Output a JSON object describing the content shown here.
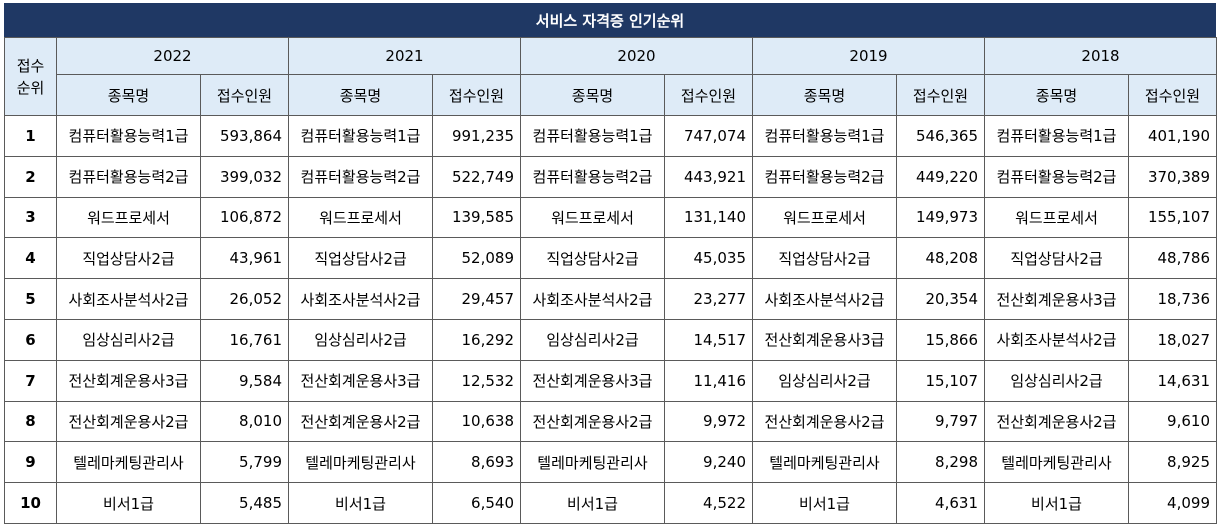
{
  "title": "서비스 자격증 인기순위",
  "rank_header_line1": "접수",
  "rank_header_line2": "순위",
  "col_name": "종목명",
  "col_count": "접수인원",
  "years": [
    "2022",
    "2021",
    "2020",
    "2019",
    "2018"
  ],
  "rows": [
    {
      "rank": "1",
      "cells": [
        [
          "컴퓨터활용능력1급",
          "593,864"
        ],
        [
          "컴퓨터활용능력1급",
          "991,235"
        ],
        [
          "컴퓨터활용능력1급",
          "747,074"
        ],
        [
          "컴퓨터활용능력1급",
          "546,365"
        ],
        [
          "컴퓨터활용능력1급",
          "401,190"
        ]
      ]
    },
    {
      "rank": "2",
      "cells": [
        [
          "컴퓨터활용능력2급",
          "399,032"
        ],
        [
          "컴퓨터활용능력2급",
          "522,749"
        ],
        [
          "컴퓨터활용능력2급",
          "443,921"
        ],
        [
          "컴퓨터활용능력2급",
          "449,220"
        ],
        [
          "컴퓨터활용능력2급",
          "370,389"
        ]
      ]
    },
    {
      "rank": "3",
      "cells": [
        [
          "워드프로세서",
          "106,872"
        ],
        [
          "워드프로세서",
          "139,585"
        ],
        [
          "워드프로세서",
          "131,140"
        ],
        [
          "워드프로세서",
          "149,973"
        ],
        [
          "워드프로세서",
          "155,107"
        ]
      ]
    },
    {
      "rank": "4",
      "cells": [
        [
          "직업상담사2급",
          "43,961"
        ],
        [
          "직업상담사2급",
          "52,089"
        ],
        [
          "직업상담사2급",
          "45,035"
        ],
        [
          "직업상담사2급",
          "48,208"
        ],
        [
          "직업상담사2급",
          "48,786"
        ]
      ]
    },
    {
      "rank": "5",
      "cells": [
        [
          "사회조사분석사2급",
          "26,052"
        ],
        [
          "사회조사분석사2급",
          "29,457"
        ],
        [
          "사회조사분석사2급",
          "23,277"
        ],
        [
          "사회조사분석사2급",
          "20,354"
        ],
        [
          "전산회계운용사3급",
          "18,736"
        ]
      ]
    },
    {
      "rank": "6",
      "cells": [
        [
          "임상심리사2급",
          "16,761"
        ],
        [
          "임상심리사2급",
          "16,292"
        ],
        [
          "임상심리사2급",
          "14,517"
        ],
        [
          "전산회계운용사3급",
          "15,866"
        ],
        [
          "사회조사분석사2급",
          "18,027"
        ]
      ]
    },
    {
      "rank": "7",
      "cells": [
        [
          "전산회계운용사3급",
          "9,584"
        ],
        [
          "전산회계운용사3급",
          "12,532"
        ],
        [
          "전산회계운용사3급",
          "11,416"
        ],
        [
          "임상심리사2급",
          "15,107"
        ],
        [
          "임상심리사2급",
          "14,631"
        ]
      ]
    },
    {
      "rank": "8",
      "cells": [
        [
          "전산회계운용사2급",
          "8,010"
        ],
        [
          "전산회계운용사2급",
          "10,638"
        ],
        [
          "전산회계운용사2급",
          "9,972"
        ],
        [
          "전산회계운용사2급",
          "9,797"
        ],
        [
          "전산회계운용사2급",
          "9,610"
        ]
      ]
    },
    {
      "rank": "9",
      "cells": [
        [
          "텔레마케팅관리사",
          "5,799"
        ],
        [
          "텔레마케팅관리사",
          "8,693"
        ],
        [
          "텔레마케팅관리사",
          "9,240"
        ],
        [
          "텔레마케팅관리사",
          "8,298"
        ],
        [
          "텔레마케팅관리사",
          "8,925"
        ]
      ]
    },
    {
      "rank": "10",
      "cells": [
        [
          "비서1급",
          "5,485"
        ],
        [
          "비서1급",
          "6,540"
        ],
        [
          "비서1급",
          "4,522"
        ],
        [
          "비서1급",
          "4,631"
        ],
        [
          "비서1급",
          "4,099"
        ]
      ]
    }
  ]
}
